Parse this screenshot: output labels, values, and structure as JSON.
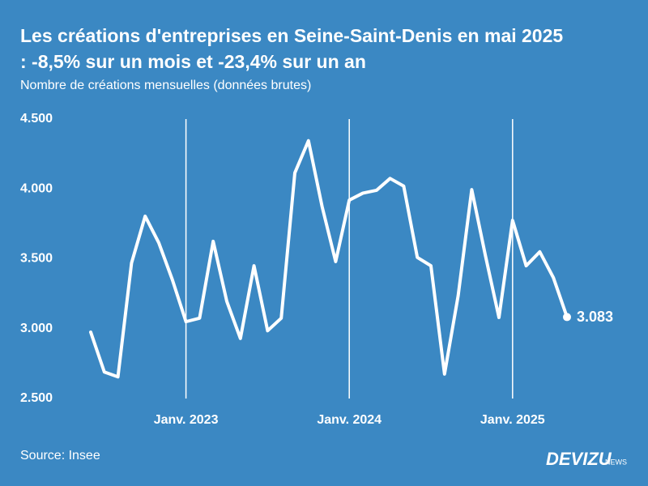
{
  "chart_data": {
    "type": "line",
    "title": [
      "Les créations d'entreprises en Seine-Saint-Denis en mai 2025",
      ": -8,5% sur un mois et -23,4% sur un an"
    ],
    "subtitle": "Nombre de créations mensuelles (données brutes)",
    "source": "Source: Insee",
    "categories": [
      null,
      null,
      null,
      null,
      null,
      null,
      null,
      "Janv. 2023",
      null,
      null,
      null,
      null,
      null,
      null,
      null,
      null,
      null,
      null,
      null,
      "Janv. 2024",
      null,
      null,
      null,
      null,
      null,
      null,
      null,
      null,
      null,
      null,
      null,
      "Janv. 2025",
      null,
      null,
      null,
      null
    ],
    "series": [
      {
        "color": "#ffffff",
        "values": [
          2975,
          2690,
          2655,
          3470,
          3805,
          3615,
          3350,
          3050,
          3075,
          3625,
          3195,
          2930,
          3450,
          2985,
          3075,
          4115,
          4345,
          3875,
          3480,
          3920,
          3970,
          3990,
          4075,
          4020,
          3510,
          3450,
          2675,
          3235,
          3995,
          3525,
          3080,
          3775,
          3450,
          3550,
          3365,
          3083
        ],
        "value_labels": [
          null,
          null,
          null,
          null,
          null,
          null,
          null,
          null,
          null,
          null,
          null,
          null,
          null,
          null,
          null,
          null,
          null,
          null,
          null,
          null,
          null,
          null,
          null,
          null,
          null,
          null,
          null,
          null,
          null,
          null,
          null,
          null,
          null,
          null,
          null,
          "3.083"
        ]
      }
    ],
    "ylim": [
      2500,
      4500
    ],
    "yticks": [
      {
        "value": 2500,
        "label": "2.500"
      },
      {
        "value": 3000,
        "label": "3.000"
      },
      {
        "value": 3500,
        "label": "3.500"
      },
      {
        "value": 4000,
        "label": "4.000"
      },
      {
        "value": 4500,
        "label": "4.500"
      }
    ],
    "grid": "x"
  },
  "brand": {
    "name": "DEVIZU",
    "suffix": "NEWS"
  }
}
